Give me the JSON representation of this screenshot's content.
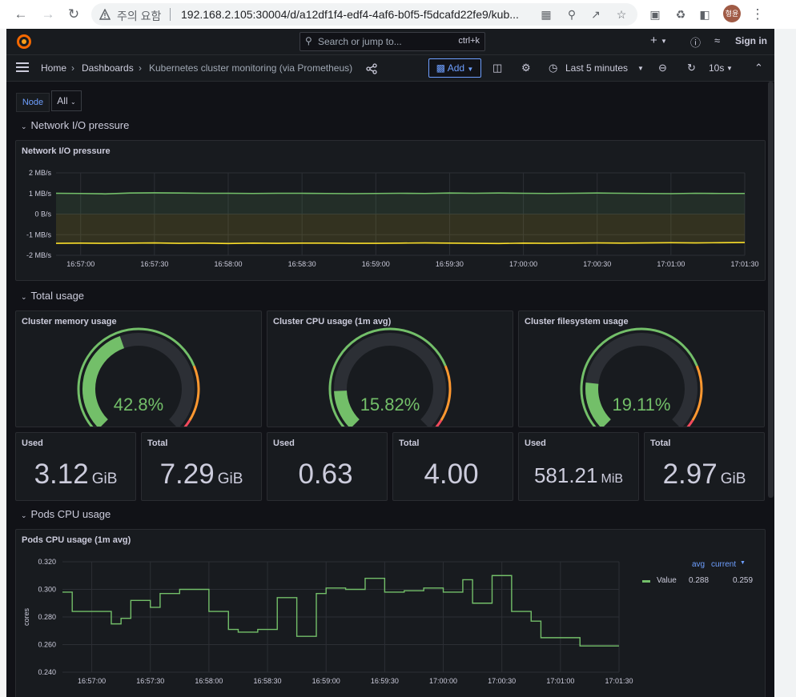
{
  "browser": {
    "warning": "주의 요함",
    "url": "192.168.2.105:30004/d/a12df1f4-edf4-4af6-b0f5-f5dcafd22fe9/kub...",
    "profile": "형윤"
  },
  "topbar": {
    "search_placeholder": "Search or jump to...",
    "search_shortcut": "ctrl+k",
    "sign_in": "Sign in",
    "new_label": "+"
  },
  "breadcrumb": [
    "Home",
    "Dashboards",
    "Kubernetes cluster monitoring (via Prometheus)"
  ],
  "toolbar": {
    "add_label": "Add",
    "time_range": "Last 5 minutes",
    "refresh_interval": "10s"
  },
  "variables": {
    "node_label": "Node",
    "node_value": "All"
  },
  "rows": {
    "network": "Network I/O pressure",
    "total": "Total usage",
    "pods": "Pods CPU usage"
  },
  "colors": {
    "green": "#73bf69",
    "yellow": "#fade2a",
    "orange": "#ff9830",
    "red": "#f2495c",
    "accent_blue": "#6e9fff"
  },
  "panels": {
    "network": {
      "title": "Network I/O pressure"
    },
    "memory_gauge": {
      "title": "Cluster memory usage",
      "value_text": "42.8%",
      "value": 0.428
    },
    "cpu_gauge": {
      "title": "Cluster CPU usage (1m avg)",
      "value_text": "15.82%",
      "value": 0.1582
    },
    "fs_gauge": {
      "title": "Cluster filesystem usage",
      "value_text": "19.11%",
      "value": 0.1911
    },
    "stats": [
      {
        "title": "Used",
        "value": "3.12",
        "unit": "GiB"
      },
      {
        "title": "Total",
        "value": "7.29",
        "unit": "GiB"
      },
      {
        "title": "Used",
        "value": "0.63",
        "unit": ""
      },
      {
        "title": "Total",
        "value": "4.00",
        "unit": ""
      },
      {
        "title": "Used",
        "value": "581.21",
        "unit": "MiB"
      },
      {
        "title": "Total",
        "value": "2.97",
        "unit": "GiB"
      }
    ],
    "pods": {
      "title": "Pods CPU usage (1m avg)",
      "ylabel": "cores",
      "legend_headers": [
        "avg",
        "current"
      ],
      "legend_series": {
        "name": "Value",
        "avg": "0.288",
        "current": "0.259"
      }
    }
  },
  "chart_data": [
    {
      "type": "line",
      "title": "Network I/O pressure",
      "ylim": [
        -2,
        2
      ],
      "y_ticks": [
        "2 MB/s",
        "1 MB/s",
        "0 B/s",
        "-1 MB/s",
        "-2 MB/s"
      ],
      "x": [
        "16:56:50",
        "16:57:00",
        "16:57:10",
        "16:57:20",
        "16:57:30",
        "16:57:40",
        "16:57:50",
        "16:58:00",
        "16:58:10",
        "16:58:20",
        "16:58:30",
        "16:58:40",
        "16:58:50",
        "16:59:00",
        "16:59:10",
        "16:59:20",
        "16:59:30",
        "16:59:40",
        "16:59:50",
        "17:00:00",
        "17:00:10",
        "17:00:20",
        "17:00:30",
        "17:00:40",
        "17:00:50",
        "17:01:00",
        "17:01:10",
        "17:01:20",
        "17:01:30"
      ],
      "x_ticks": [
        "16:57:00",
        "16:57:30",
        "16:58:00",
        "16:58:30",
        "16:59:00",
        "16:59:30",
        "17:00:00",
        "17:00:30",
        "17:01:00",
        "17:01:30"
      ],
      "series": [
        {
          "color": "#73bf69",
          "values": [
            1.01,
            1.0,
            0.98,
            1.02,
            1.03,
            1.02,
            1.01,
            1.01,
            1.0,
            1.01,
            1.01,
            1.0,
            0.99,
            1.0,
            1.01,
            1.0,
            1.02,
            1.01,
            1.02,
            1.01,
            1.0,
            1.01,
            1.02,
            1.01,
            1.0,
            0.99,
            1.01,
            1.0,
            1.0
          ]
        },
        {
          "color": "#fade2a",
          "values": [
            -1.42,
            -1.41,
            -1.42,
            -1.41,
            -1.4,
            -1.42,
            -1.41,
            -1.43,
            -1.41,
            -1.42,
            -1.41,
            -1.41,
            -1.42,
            -1.42,
            -1.41,
            -1.4,
            -1.41,
            -1.42,
            -1.43,
            -1.41,
            -1.42,
            -1.41,
            -1.4,
            -1.41,
            -1.4,
            -1.39,
            -1.4,
            -1.39,
            -1.38
          ]
        }
      ]
    },
    {
      "type": "line",
      "title": "Pods CPU usage (1m avg)",
      "ylabel": "cores",
      "ylim": [
        0.24,
        0.32
      ],
      "y_ticks": [
        "0.320",
        "0.300",
        "0.280",
        "0.260",
        "0.240"
      ],
      "x_ticks": [
        "16:57:00",
        "16:57:30",
        "16:58:00",
        "16:58:30",
        "16:59:00",
        "16:59:30",
        "17:00:00",
        "17:00:30",
        "17:01:00",
        "17:01:30"
      ],
      "x": [
        "16:56:45",
        "16:56:50",
        "16:57:00",
        "16:57:10",
        "16:57:15",
        "16:57:20",
        "16:57:30",
        "16:57:35",
        "16:57:45",
        "16:58:00",
        "16:58:10",
        "16:58:15",
        "16:58:25",
        "16:58:35",
        "16:58:45",
        "16:58:55",
        "16:59:00",
        "16:59:10",
        "16:59:20",
        "16:59:30",
        "16:59:40",
        "16:59:50",
        "17:00:00",
        "17:00:10",
        "17:00:15",
        "17:00:25",
        "17:00:35",
        "17:00:45",
        "17:00:50",
        "17:01:00",
        "17:01:10",
        "17:01:20",
        "17:01:30"
      ],
      "series": [
        {
          "name": "Value",
          "color": "#73bf69",
          "values": [
            0.298,
            0.284,
            0.284,
            0.275,
            0.279,
            0.292,
            0.287,
            0.297,
            0.3,
            0.284,
            0.271,
            0.269,
            0.271,
            0.294,
            0.266,
            0.297,
            0.301,
            0.3,
            0.308,
            0.298,
            0.299,
            0.301,
            0.298,
            0.307,
            0.29,
            0.31,
            0.284,
            0.277,
            0.265,
            0.265,
            0.259,
            0.259,
            0.259
          ]
        }
      ]
    }
  ]
}
